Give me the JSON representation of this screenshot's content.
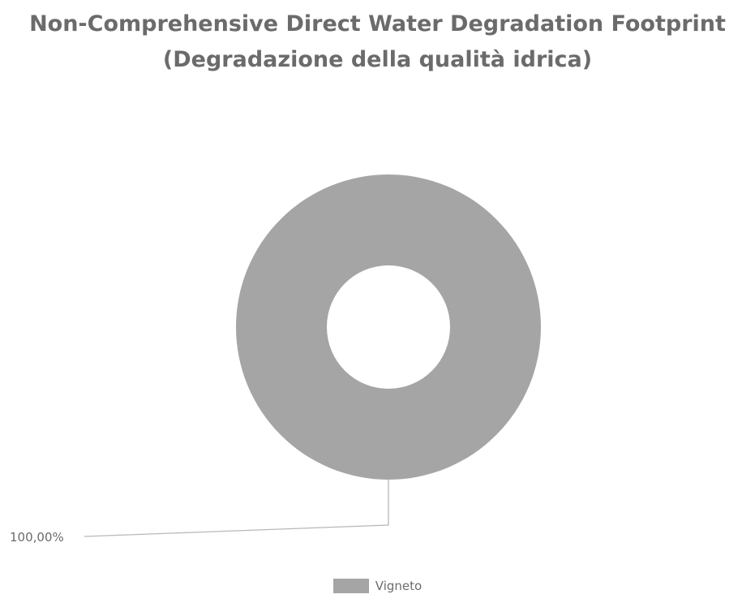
{
  "chart_data": {
    "type": "pie",
    "variant": "doughnut",
    "title": "Non-Comprehensive Direct Water Degradation Footprint",
    "subtitle": "(Degradazione della qualità idrica)",
    "slices": [
      {
        "label": "Vigneto",
        "value": 100,
        "display_value": "100,00%",
        "color": "#a5a5a5"
      }
    ],
    "legend_position": "bottom"
  }
}
